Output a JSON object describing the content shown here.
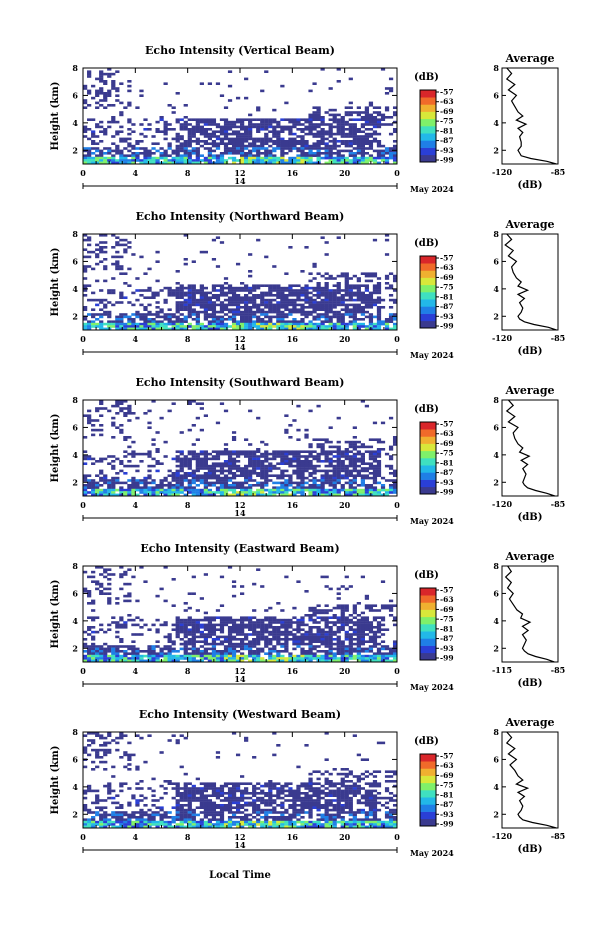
{
  "figure": {
    "xlabel": "Local Time"
  },
  "colorbar": {
    "unit": "(dB)",
    "ticks": [
      "-57",
      "-63",
      "-69",
      "-75",
      "-81",
      "-87",
      "-93",
      "-99"
    ],
    "colors": [
      "#3a3a8f",
      "#2a3fd6",
      "#1f7fe6",
      "#22b8e8",
      "#3fe0c0",
      "#7ff06a",
      "#d8e83a",
      "#f0b030",
      "#f06a2a",
      "#d9262a"
    ]
  },
  "chart_data": [
    {
      "type": "heatmap",
      "title": "Echo Intensity (Vertical Beam)",
      "ylabel": "Height (km)",
      "x_ticks": [
        "0",
        "4",
        "8",
        "12",
        "16",
        "20",
        "0"
      ],
      "x_range": [
        0,
        24
      ],
      "y_ticks": [
        "2",
        "4",
        "6",
        "8"
      ],
      "y_range": [
        1,
        8
      ],
      "date_center": "14",
      "date_label": "May 2024",
      "profile": {
        "title": "Average",
        "xlabel": "(dB)",
        "x_ticks": [
          "-120",
          "-85"
        ],
        "x_range": [
          -120,
          -85
        ],
        "y_ticks": [
          "2",
          "4",
          "6",
          "8"
        ],
        "heights": [
          1.0,
          1.2,
          1.4,
          1.6,
          1.8,
          2.0,
          2.3,
          2.6,
          3.0,
          3.3,
          3.6,
          3.9,
          4.2,
          4.5,
          4.8,
          5.2,
          5.6,
          6.0,
          6.4,
          6.8,
          7.2,
          7.6,
          8.0
        ],
        "values": [
          -86,
          -92,
          -102,
          -108,
          -109,
          -110,
          -108,
          -108,
          -109,
          -107,
          -110,
          -105,
          -111,
          -107,
          -110,
          -112,
          -114,
          -111,
          -116,
          -112,
          -117,
          -114,
          -117
        ]
      }
    },
    {
      "type": "heatmap",
      "title": "Echo Intensity (Northward Beam)",
      "ylabel": "Height (km)",
      "x_ticks": [
        "0",
        "4",
        "8",
        "12",
        "16",
        "20",
        "0"
      ],
      "x_range": [
        0,
        24
      ],
      "y_ticks": [
        "2",
        "4",
        "6",
        "8"
      ],
      "y_range": [
        1,
        8
      ],
      "date_center": "14",
      "date_label": "May 2024",
      "profile": {
        "title": "Average",
        "xlabel": "(dB)",
        "x_ticks": [
          "-120",
          "-85"
        ],
        "x_range": [
          -120,
          -85
        ],
        "y_ticks": [
          "2",
          "4",
          "6",
          "8"
        ],
        "heights": [
          1.0,
          1.2,
          1.4,
          1.6,
          1.8,
          2.0,
          2.3,
          2.6,
          3.0,
          3.3,
          3.6,
          3.9,
          4.2,
          4.5,
          4.8,
          5.2,
          5.6,
          6.0,
          6.4,
          6.8,
          7.2,
          7.6,
          8.0
        ],
        "values": [
          -86,
          -91,
          -100,
          -106,
          -109,
          -110,
          -108,
          -107,
          -109,
          -106,
          -110,
          -104,
          -110,
          -108,
          -111,
          -113,
          -114,
          -111,
          -116,
          -113,
          -118,
          -114,
          -117
        ]
      }
    },
    {
      "type": "heatmap",
      "title": "Echo Intensity (Southward Beam)",
      "ylabel": "Height (km)",
      "x_ticks": [
        "0",
        "4",
        "8",
        "12",
        "16",
        "20",
        "0"
      ],
      "x_range": [
        0,
        24
      ],
      "y_ticks": [
        "2",
        "4",
        "6",
        "8"
      ],
      "y_range": [
        1,
        8
      ],
      "date_center": "14",
      "date_label": "May 2024",
      "profile": {
        "title": "Average",
        "xlabel": "(dB)",
        "x_ticks": [
          "-120",
          "-85"
        ],
        "x_range": [
          -120,
          -85
        ],
        "y_ticks": [
          "2",
          "4",
          "6",
          "8"
        ],
        "heights": [
          1.0,
          1.2,
          1.4,
          1.6,
          1.8,
          2.0,
          2.3,
          2.6,
          3.0,
          3.3,
          3.6,
          3.9,
          4.2,
          4.5,
          4.8,
          5.2,
          5.6,
          6.0,
          6.4,
          6.8,
          7.2,
          7.6,
          8.0
        ],
        "values": [
          -87,
          -92,
          -99,
          -104,
          -106,
          -107,
          -106,
          -105,
          -107,
          -104,
          -108,
          -103,
          -109,
          -107,
          -110,
          -112,
          -113,
          -110,
          -116,
          -112,
          -117,
          -113,
          -116
        ]
      }
    },
    {
      "type": "heatmap",
      "title": "Echo Intensity (Eastward Beam)",
      "ylabel": "Height (km)",
      "x_ticks": [
        "0",
        "4",
        "8",
        "12",
        "16",
        "20",
        "0"
      ],
      "x_range": [
        0,
        24
      ],
      "y_ticks": [
        "2",
        "4",
        "6",
        "8"
      ],
      "y_range": [
        1,
        8
      ],
      "date_center": "14",
      "date_label": "May 2024",
      "profile": {
        "title": "Average",
        "xlabel": "(dB)",
        "x_ticks": [
          "-115",
          "-85"
        ],
        "x_range": [
          -115,
          -85
        ],
        "y_ticks": [
          "2",
          "4",
          "6",
          "8"
        ],
        "heights": [
          1.0,
          1.2,
          1.4,
          1.6,
          1.8,
          2.0,
          2.3,
          2.6,
          3.0,
          3.3,
          3.6,
          3.9,
          4.2,
          4.5,
          4.8,
          5.2,
          5.6,
          6.0,
          6.4,
          6.8,
          7.2,
          7.6,
          8.0
        ],
        "values": [
          -87,
          -91,
          -97,
          -101,
          -103,
          -104,
          -103,
          -102,
          -104,
          -101,
          -104,
          -100,
          -105,
          -104,
          -107,
          -109,
          -111,
          -109,
          -112,
          -110,
          -113,
          -110,
          -112
        ]
      }
    },
    {
      "type": "heatmap",
      "title": "Echo Intensity (Westward Beam)",
      "ylabel": "Height (km)",
      "x_ticks": [
        "0",
        "4",
        "8",
        "12",
        "16",
        "20",
        "0"
      ],
      "x_range": [
        0,
        24
      ],
      "y_ticks": [
        "2",
        "4",
        "6",
        "8"
      ],
      "y_range": [
        1,
        8
      ],
      "date_center": "14",
      "date_label": "May 2024",
      "profile": {
        "title": "Average",
        "xlabel": "(dB)",
        "x_ticks": [
          "-120",
          "-85"
        ],
        "x_range": [
          -120,
          -85
        ],
        "y_ticks": [
          "2",
          "4",
          "6",
          "8"
        ],
        "heights": [
          1.0,
          1.2,
          1.4,
          1.6,
          1.8,
          2.0,
          2.3,
          2.6,
          3.0,
          3.3,
          3.6,
          3.9,
          4.2,
          4.5,
          4.8,
          5.2,
          5.6,
          6.0,
          6.4,
          6.8,
          7.2,
          7.6,
          8.0
        ],
        "values": [
          -86,
          -92,
          -101,
          -107,
          -109,
          -110,
          -108,
          -107,
          -109,
          -106,
          -110,
          -104,
          -111,
          -107,
          -110,
          -112,
          -115,
          -111,
          -116,
          -112,
          -117,
          -114,
          -117
        ]
      }
    }
  ]
}
